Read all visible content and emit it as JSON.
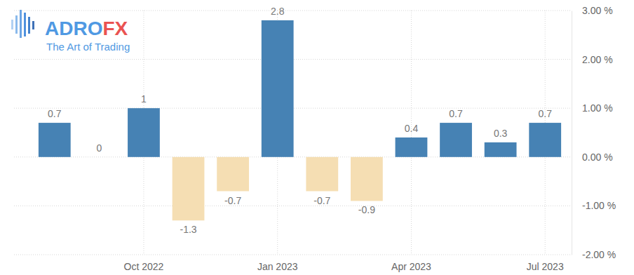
{
  "chart_data": {
    "type": "bar",
    "categories": [
      null,
      null,
      "Oct 2022",
      null,
      null,
      "Jan 2023",
      null,
      null,
      "Apr 2023",
      null,
      null,
      "Jul 2023"
    ],
    "values": [
      0.7,
      0,
      1,
      -1.3,
      -0.7,
      2.8,
      -0.7,
      -0.9,
      0.4,
      0.7,
      0.3,
      0.7
    ],
    "colors": [
      "#4682b4",
      "#4682b4",
      "#4682b4",
      "#f5deb3",
      "#f5deb3",
      "#4682b4",
      "#f5deb3",
      "#f5deb3",
      "#4682b4",
      "#4682b4",
      "#4682b4",
      "#4682b4"
    ],
    "ylim": [
      -2,
      3
    ],
    "yticks": [
      {
        "value": -2,
        "label": "-2.00 %"
      },
      {
        "value": -1,
        "label": "-1.00 %"
      },
      {
        "value": 0,
        "label": "0.00 %"
      },
      {
        "value": 1,
        "label": "1.00 %"
      },
      {
        "value": 2,
        "label": "2.00 %"
      },
      {
        "value": 3,
        "label": "3.00 %"
      }
    ],
    "grid": true,
    "data_labels": true
  },
  "logo": {
    "name": [
      "ADRO",
      "FX"
    ],
    "tagline": "The Art of Trading"
  }
}
